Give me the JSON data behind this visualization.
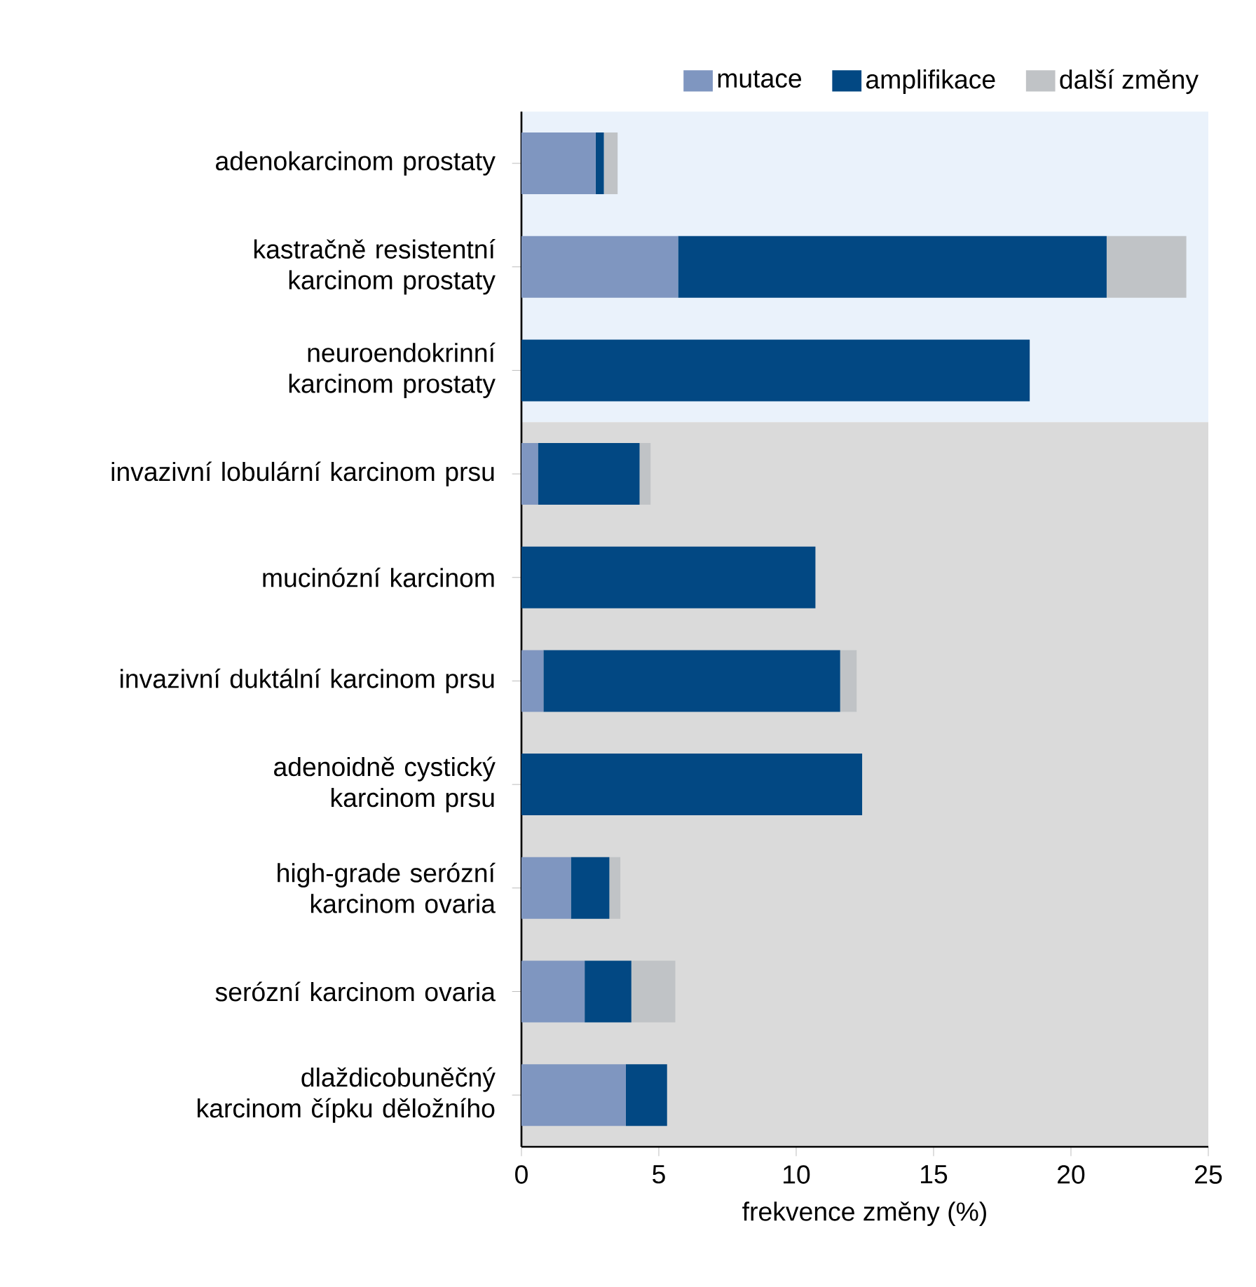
{
  "chart_data": {
    "type": "bar",
    "orientation": "horizontal",
    "stacked": true,
    "xlabel": "frekvence změny (%)",
    "categories": [
      "adenokarcinom prostaty",
      "kastračně resistentní karcinom prostaty",
      "neuroendokrinní karcinom prostaty",
      "invazivní lobulární karcinom prsu",
      "mucinózní karcinom",
      "invazivní duktální karcinom prsu",
      "adenoidně cystický karcinom prsu",
      "high-grade serózní karcinom ovaria",
      "serózní karcinom ovaria",
      "dlaždicobuněčný karcinom čípku děložního"
    ],
    "series": [
      {
        "name": "mutace",
        "color": "#7f96c0",
        "values": [
          2.7,
          5.7,
          null,
          0.6,
          null,
          0.8,
          null,
          1.8,
          2.3,
          3.8
        ]
      },
      {
        "name": "amplifikace",
        "color": "#024883",
        "values": [
          0.3,
          15.6,
          18.5,
          3.7,
          10.7,
          10.8,
          12.4,
          1.4,
          1.7,
          1.5
        ]
      },
      {
        "name": "další změny",
        "color": "#c0c3c6",
        "values": [
          0.5,
          2.9,
          null,
          0.4,
          null,
          0.6,
          null,
          0.4,
          1.6,
          null
        ]
      }
    ],
    "xlim": [
      0,
      25
    ],
    "xticks": [
      0,
      5,
      10,
      15,
      20,
      25
    ],
    "bands": [
      {
        "axis": "y",
        "from": "adenokarcinom prostaty",
        "to": "neuroendokrinní karcinom prostaty",
        "color": "#eaf2fb"
      },
      {
        "axis": "y",
        "from": "invazivní lobulární karcinom prsu",
        "to": "dlaždicobuněčný karcinom čípku děložního",
        "color": "#dadada"
      }
    ],
    "legend": "top right",
    "grid": false
  }
}
